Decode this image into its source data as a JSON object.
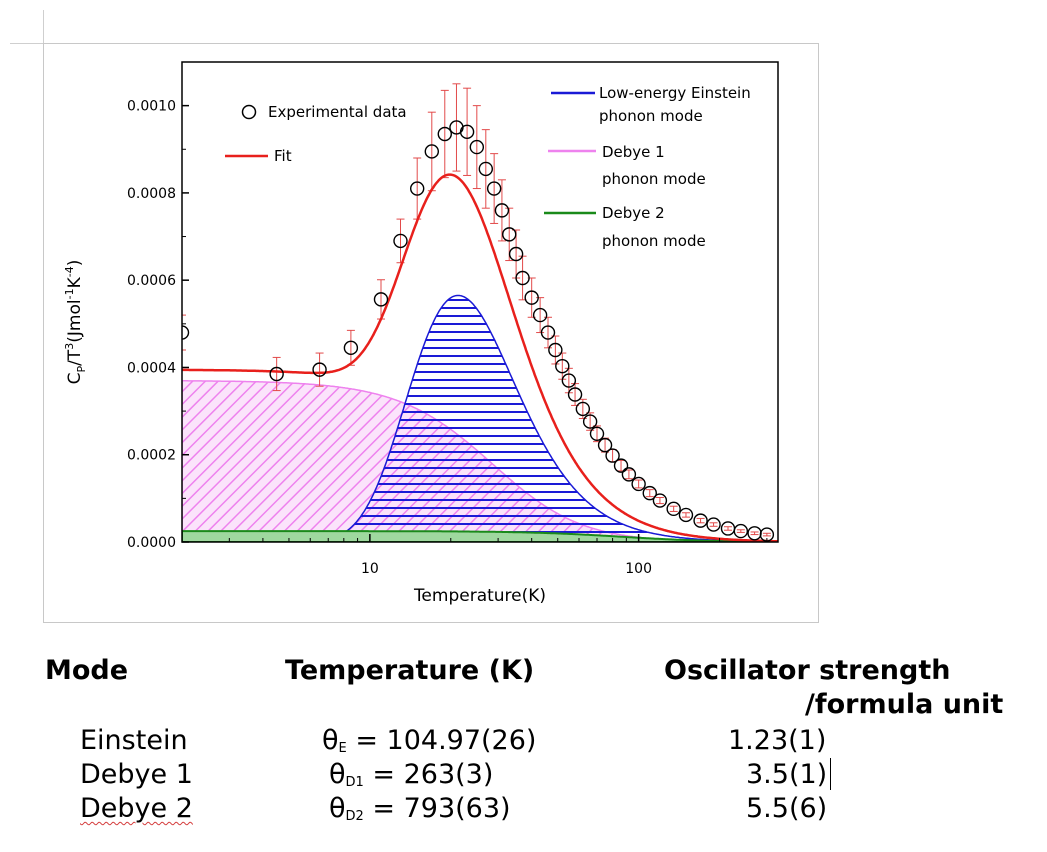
{
  "chart_data": {
    "type": "line",
    "xlabel": "Temperature(K)",
    "ylabel_parts": [
      "C",
      "P",
      "/T",
      "3",
      "(Jmol",
      "-1",
      "K",
      "-4",
      ")"
    ],
    "x_scale": "log",
    "xlim": [
      2,
      330
    ],
    "ylim": [
      0,
      0.0011
    ],
    "x_ticks": [
      10,
      100
    ],
    "x_tick_labels": [
      "10",
      "100"
    ],
    "y_ticks": [
      0,
      0.0002,
      0.0004,
      0.0006,
      0.0008,
      0.001
    ],
    "y_tick_labels": [
      "0.0000",
      "0.0002",
      "0.0004",
      "0.0006",
      "0.0008",
      "0.0010"
    ],
    "legend": {
      "placement": "top",
      "experimental": "Experimental data",
      "fit": "Fit",
      "einstein_1": "Low-energy Einstein",
      "einstein_2": "phonon mode",
      "debye1_1": "Debye 1",
      "debye1_2": "phonon mode",
      "debye2_1": "Debye 2",
      "debye2_2": "phonon mode"
    },
    "colors": {
      "fit": "#e8201c",
      "einstein": "#1a1ad6",
      "debye1": "#ee82ee",
      "debye2": "#1a8a1a",
      "errorbar": "#e24a4a"
    },
    "model": {
      "theta_E": 104.97,
      "theta_D1": 263,
      "theta_D2": 793,
      "einstein_peak": 0.000565,
      "debye1_plateau": 0.00037,
      "debye2_plateau": 2.5e-05
    },
    "experimental": {
      "x": [
        2.0,
        4.5,
        6.5,
        8.5,
        11,
        13,
        15,
        17,
        19,
        21,
        23,
        25,
        27,
        29,
        31,
        33,
        35,
        37,
        40,
        43,
        46,
        49,
        52,
        55,
        58,
        62,
        66,
        70,
        75,
        80,
        86,
        92,
        100,
        110,
        120,
        135,
        150,
        170,
        190,
        215,
        240,
        270,
        300
      ],
      "y": [
        0.00048,
        0.000385,
        0.000395,
        0.000445,
        0.000556,
        0.00069,
        0.00081,
        0.000895,
        0.000935,
        0.00095,
        0.00094,
        0.000905,
        0.000855,
        0.00081,
        0.00076,
        0.000705,
        0.00066,
        0.000605,
        0.00056,
        0.00052,
        0.00048,
        0.00044,
        0.000403,
        0.00037,
        0.000338,
        0.000305,
        0.000276,
        0.000248,
        0.000222,
        0.000198,
        0.000175,
        0.000155,
        0.000133,
        0.000112,
        9.5e-05,
        7.6e-05,
        6.2e-05,
        4.9e-05,
        4e-05,
        3.1e-05,
        2.5e-05,
        2e-05,
        1.7e-05
      ],
      "error": [
        4e-05,
        3.8e-05,
        3.8e-05,
        4e-05,
        4.5e-05,
        5e-05,
        7e-05,
        9e-05,
        0.0001,
        0.0001,
        0.0001,
        9.5e-05,
        9e-05,
        8e-05,
        7e-05,
        6e-05,
        5.5e-05,
        5e-05,
        4.5e-05,
        4e-05,
        3.5e-05,
        3.2e-05,
        3e-05,
        2.8e-05,
        2.5e-05,
        2.2e-05,
        2e-05,
        1.8e-05,
        1.6e-05,
        1.4e-05,
        1.2e-05,
        1e-05,
        9e-06,
        8e-06,
        7e-06,
        6e-06,
        5e-06,
        5e-06,
        4e-06,
        4e-06,
        3e-06,
        3e-06,
        3e-06
      ]
    }
  },
  "table": {
    "headers": {
      "mode": "Mode",
      "temperature": "Temperature (K)",
      "osc_line1": "Oscillator strength",
      "osc_line2": "/formula unit"
    },
    "rows": [
      {
        "mode": "Einstein",
        "theta": "θ",
        "sub": "E",
        "eq": " = 104.97(26)",
        "strength": "1.23(1)"
      },
      {
        "mode": "Debye 1",
        "theta": "θ",
        "sub": "D1",
        "eq": " = 263(3)",
        "strength": "3.5(1)"
      },
      {
        "mode": "Debye 2",
        "theta": "θ",
        "sub": "D2",
        "eq": " = 793(63)",
        "strength": "5.5(6)"
      }
    ]
  }
}
